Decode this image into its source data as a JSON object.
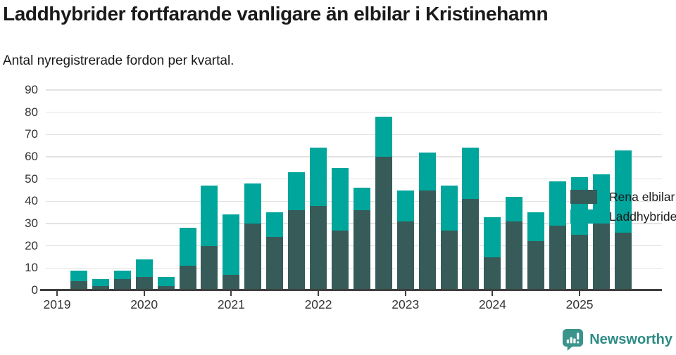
{
  "header": {
    "title": "Laddhybrider fortfarande vanligare än elbilar i Kristinehamn",
    "subtitle": "Antal nyregistrerade fordon per kvartal."
  },
  "footer": {
    "brand": "Newsworthy"
  },
  "colors": {
    "elbilar": "#365B58",
    "laddhybrider": "#00A59B",
    "axis": "#3F3F3F",
    "gridline": "#E3E3E3",
    "text": "#1A1A1A",
    "brand_teal": "#2E8C86",
    "logo_icon": "#3A948C"
  },
  "chart_data": {
    "type": "bar",
    "stacked": true,
    "title": "Laddhybrider fortfarande vanligare än elbilar i Kristinehamn",
    "subtitle": "Antal nyregistrerade fordon per kvartal.",
    "xlabel": "",
    "ylabel": "",
    "ylim": [
      0,
      90
    ],
    "y_ticks": [
      0,
      10,
      20,
      30,
      40,
      50,
      60,
      70,
      80,
      90
    ],
    "grid": "horizontal",
    "legend_position": "top-right",
    "categories": [
      "2019 Q1",
      "2019 Q2",
      "2019 Q3",
      "2019 Q4",
      "2020 Q1",
      "2020 Q2",
      "2020 Q3",
      "2020 Q4",
      "2021 Q1",
      "2021 Q2",
      "2021 Q3",
      "2021 Q4",
      "2022 Q1",
      "2022 Q2",
      "2022 Q3",
      "2022 Q4",
      "2023 Q1",
      "2023 Q2",
      "2023 Q3",
      "2023 Q4",
      "2024 Q1",
      "2024 Q2",
      "2024 Q3",
      "2024 Q4",
      "2025 Q1",
      "2025 Q2",
      "2025 Q3"
    ],
    "x_tick_labels": [
      "2019",
      "2020",
      "2021",
      "2022",
      "2023",
      "2024",
      "2025"
    ],
    "series": [
      {
        "name": "Rena elbilar",
        "color": "#365B58",
        "values": [
          0,
          4,
          2,
          5,
          6,
          2,
          11,
          20,
          7,
          30,
          24,
          36,
          38,
          27,
          36,
          60,
          31,
          45,
          27,
          41,
          15,
          31,
          22,
          29,
          25,
          30,
          26
        ]
      },
      {
        "name": "Laddhybrider",
        "color": "#00A59B",
        "values": [
          0,
          5,
          3,
          4,
          8,
          4,
          17,
          27,
          27,
          18,
          11,
          17,
          26,
          28,
          10,
          18,
          14,
          17,
          20,
          23,
          18,
          11,
          13,
          20,
          26,
          22,
          37
        ]
      }
    ],
    "stacked_totals": [
      0,
      9,
      5,
      9,
      14,
      6,
      28,
      47,
      34,
      48,
      35,
      53,
      64,
      55,
      46,
      78,
      45,
      62,
      47,
      64,
      33,
      42,
      35,
      49,
      51,
      52,
      63
    ]
  }
}
